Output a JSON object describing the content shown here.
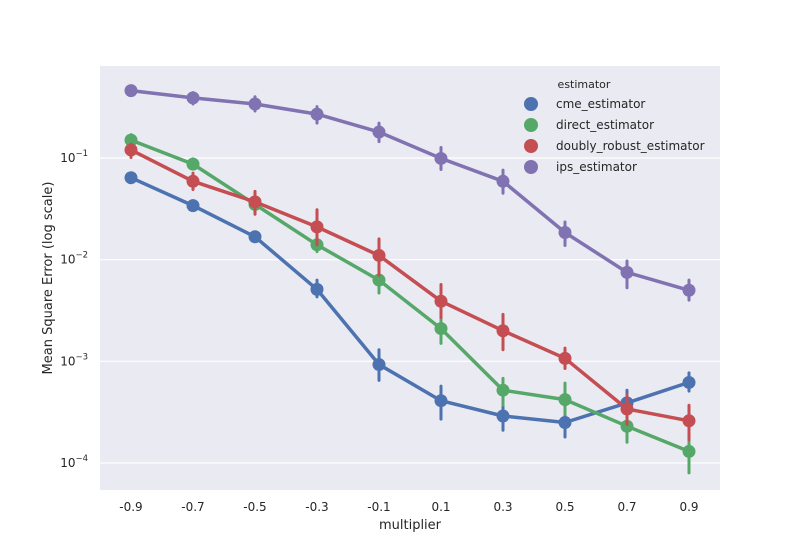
{
  "chart_data": {
    "type": "line",
    "title": "",
    "xlabel": "multiplier",
    "ylabel": "Mean Square Error (log scale)",
    "yscale": "log",
    "ylim": [
      5e-05,
      0.8
    ],
    "grid": true,
    "legend_position": "top-right",
    "legend_title": "estimator",
    "categories": [
      "-0.9",
      "-0.7",
      "-0.5",
      "-0.3",
      "-0.1",
      "0.1",
      "0.3",
      "0.5",
      "0.7",
      "0.9"
    ],
    "y_ticks": [
      {
        "value": 0.1,
        "base": "10",
        "exp": "−1"
      },
      {
        "value": 0.01,
        "base": "10",
        "exp": "−2"
      },
      {
        "value": 0.001,
        "base": "10",
        "exp": "−3"
      },
      {
        "value": 0.0001,
        "base": "10",
        "exp": "−4"
      }
    ],
    "series": [
      {
        "name": "cme_estimator",
        "color": "#4c72b0",
        "values": [
          0.064,
          0.034,
          0.0168,
          0.0051,
          0.00093,
          0.00041,
          0.00029,
          0.00025,
          0.00039,
          0.00062
        ],
        "ci": [
          [
            0.058,
            0.071
          ],
          [
            0.031,
            0.038
          ],
          [
            0.0155,
            0.0182
          ],
          [
            0.0043,
            0.0063
          ],
          [
            0.00065,
            0.0013
          ],
          [
            0.00027,
            0.00057
          ],
          [
            0.00021,
            0.00044
          ],
          [
            0.00018,
            0.00035
          ],
          [
            0.00027,
            0.00052
          ],
          [
            0.00051,
            0.00077
          ]
        ]
      },
      {
        "name": "direct_estimator",
        "color": "#55a868",
        "values": [
          0.15,
          0.087,
          0.035,
          0.014,
          0.0063,
          0.0021,
          0.00052,
          0.00042,
          0.00023,
          0.00013
        ],
        "ci": [
          [
            0.135,
            0.17
          ],
          [
            0.078,
            0.098
          ],
          [
            0.03,
            0.041
          ],
          [
            0.012,
            0.0165
          ],
          [
            0.0047,
            0.008
          ],
          [
            0.0015,
            0.0029
          ],
          [
            0.00037,
            0.00068
          ],
          [
            0.0003,
            0.00061
          ],
          [
            0.00016,
            0.0003
          ],
          [
            8e-05,
            0.00018
          ]
        ]
      },
      {
        "name": "doubly_robust_estimator",
        "color": "#c44e52",
        "values": [
          0.12,
          0.059,
          0.037,
          0.021,
          0.011,
          0.0039,
          0.002,
          0.00107,
          0.00034,
          0.00026
        ],
        "ci": [
          [
            0.101,
            0.137
          ],
          [
            0.049,
            0.071
          ],
          [
            0.028,
            0.047
          ],
          [
            0.014,
            0.031
          ],
          [
            0.007,
            0.016
          ],
          [
            0.0027,
            0.0057
          ],
          [
            0.0013,
            0.0029
          ],
          [
            0.00085,
            0.00135
          ],
          [
            0.00024,
            0.00047
          ],
          [
            0.00017,
            0.00037
          ]
        ]
      },
      {
        "name": "ips_estimator",
        "color": "#8172b2",
        "values": [
          0.46,
          0.39,
          0.34,
          0.27,
          0.18,
          0.099,
          0.059,
          0.0185,
          0.0075,
          0.005
        ],
        "ci": [
          [
            0.42,
            0.51
          ],
          [
            0.34,
            0.44
          ],
          [
            0.29,
            0.4
          ],
          [
            0.22,
            0.32
          ],
          [
            0.145,
            0.22
          ],
          [
            0.077,
            0.127
          ],
          [
            0.045,
            0.076
          ],
          [
            0.0138,
            0.0235
          ],
          [
            0.0053,
            0.0097
          ],
          [
            0.004,
            0.0063
          ]
        ]
      }
    ]
  }
}
